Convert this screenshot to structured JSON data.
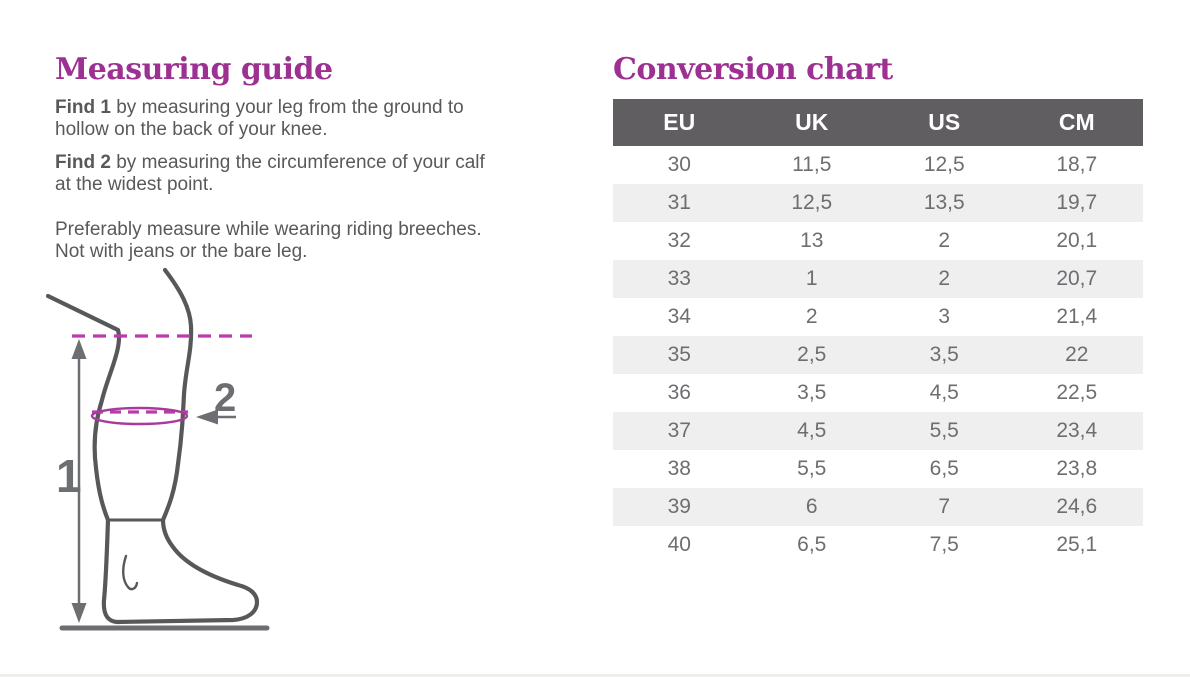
{
  "colors": {
    "accent_purple": "#9c3192",
    "text_gray": "#58595b",
    "line_gray": "#57585a",
    "measure_gray": "#6d6e71",
    "dash_magenta": "#bd3aad",
    "ellipse_magenta": "#a73b9c",
    "table_header_bg": "#615e62",
    "table_header_text": "#ffffff",
    "table_row_alt_bg": "#efefef",
    "table_cell_text": "#6d6e71",
    "page_bg": "#ffffff",
    "bottom_border": "#eeeeec"
  },
  "measuring_guide": {
    "title": "Measuring guide",
    "paragraphs": [
      {
        "bold": "Find 1",
        "rest": " by measuring your leg from the ground to hollow on the back of your knee."
      },
      {
        "bold": "Find 2",
        "rest": " by measuring the circumference of your calf at the widest point."
      },
      {
        "rest": "Preferably measure while wearing riding breeches. Not with jeans or the bare leg."
      }
    ],
    "diagram": {
      "label_1": "1",
      "label_2": "2"
    }
  },
  "conversion_chart": {
    "title": "Conversion chart",
    "columns": [
      "EU",
      "UK",
      "US",
      "CM"
    ],
    "rows": [
      [
        "30",
        "11,5",
        "12,5",
        "18,7"
      ],
      [
        "31",
        "12,5",
        "13,5",
        "19,7"
      ],
      [
        "32",
        "13",
        "2",
        "20,1"
      ],
      [
        "33",
        "1",
        "2",
        "20,7"
      ],
      [
        "34",
        "2",
        "3",
        "21,4"
      ],
      [
        "35",
        "2,5",
        "3,5",
        "22"
      ],
      [
        "36",
        "3,5",
        "4,5",
        "22,5"
      ],
      [
        "37",
        "4,5",
        "5,5",
        "23,4"
      ],
      [
        "38",
        "5,5",
        "6,5",
        "23,8"
      ],
      [
        "39",
        "6",
        "7",
        "24,6"
      ],
      [
        "40",
        "6,5",
        "7,5",
        "25,1"
      ]
    ]
  }
}
